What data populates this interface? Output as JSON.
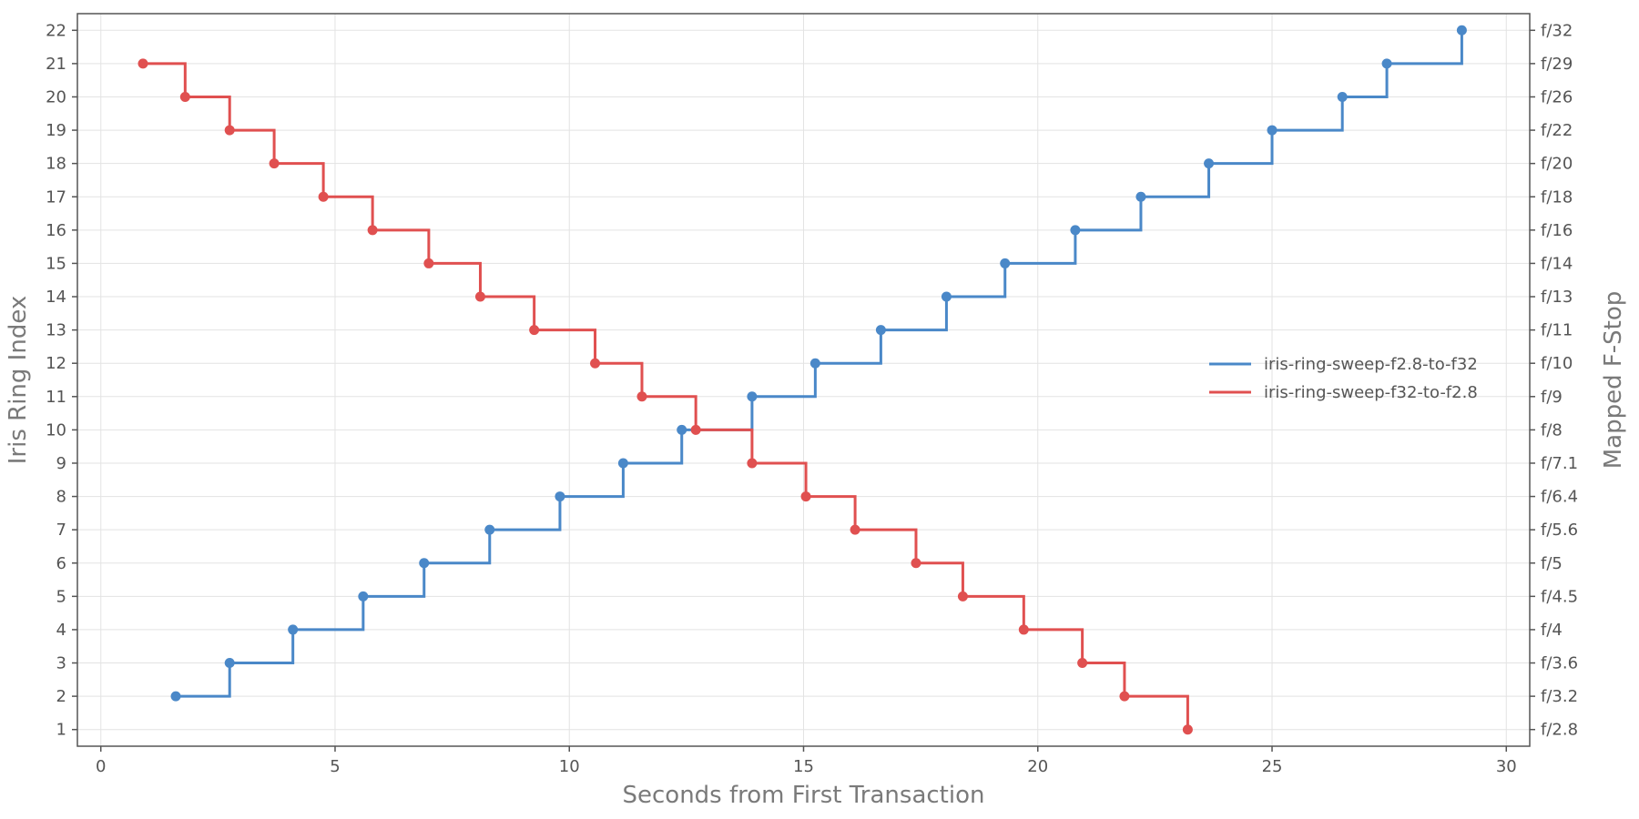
{
  "chart_data": {
    "type": "line",
    "step": "post",
    "xlabel": "Seconds from First Transaction",
    "ylabel": "Iris Ring Index",
    "y2label": "Mapped F-Stop",
    "xlim": [
      -0.5,
      30.5
    ],
    "ylim": [
      0.5,
      22.5
    ],
    "xticks": [
      0,
      5,
      10,
      15,
      20,
      25,
      30
    ],
    "yticks": [
      1,
      2,
      3,
      4,
      5,
      6,
      7,
      8,
      9,
      10,
      11,
      12,
      13,
      14,
      15,
      16,
      17,
      18,
      19,
      20,
      21,
      22
    ],
    "y2ticks": [
      "f/2.8",
      "f/3.2",
      "f/3.6",
      "f/4",
      "f/4.5",
      "f/5",
      "f/5.6",
      "f/6.4",
      "f/7.1",
      "f/8",
      "f/9",
      "f/10",
      "f/11",
      "f/13",
      "f/14",
      "f/16",
      "f/18",
      "f/20",
      "f/22",
      "f/26",
      "f/29",
      "f/32"
    ],
    "grid": true,
    "legend_position": "center-right",
    "series": [
      {
        "name": "iris-ring-sweep-f2.8-to-f32",
        "color": "#4a88c8",
        "x": [
          1.6,
          2.75,
          4.1,
          5.6,
          6.9,
          8.3,
          9.8,
          11.15,
          12.4,
          13.9,
          15.25,
          16.65,
          18.05,
          19.3,
          20.8,
          22.2,
          23.65,
          25.0,
          26.5,
          27.45,
          29.05
        ],
        "y": [
          2,
          3,
          4,
          5,
          6,
          7,
          8,
          9,
          10,
          11,
          12,
          13,
          14,
          15,
          16,
          17,
          18,
          19,
          20,
          21,
          22
        ]
      },
      {
        "name": "iris-ring-sweep-f32-to-f2.8",
        "color": "#e05050",
        "x": [
          0.9,
          1.8,
          2.75,
          3.7,
          4.75,
          5.8,
          7.0,
          8.1,
          9.25,
          10.55,
          11.55,
          12.7,
          13.9,
          15.05,
          16.1,
          17.4,
          18.4,
          19.7,
          20.95,
          21.85,
          23.2
        ],
        "y": [
          21,
          20,
          19,
          18,
          17,
          16,
          15,
          14,
          13,
          12,
          11,
          10,
          9,
          8,
          7,
          6,
          5,
          4,
          3,
          2,
          1
        ]
      }
    ]
  }
}
